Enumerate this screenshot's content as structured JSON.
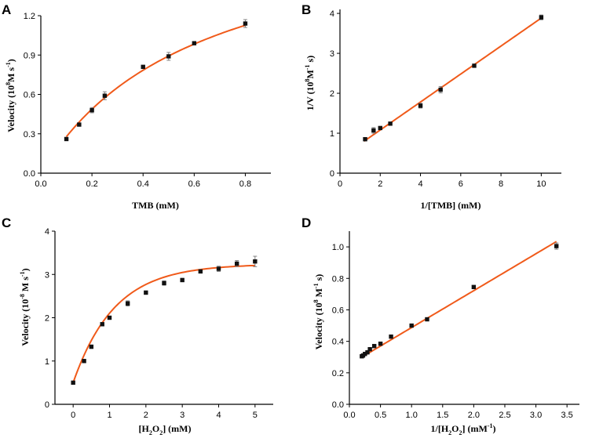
{
  "figure": {
    "panels": [
      "A",
      "B",
      "C",
      "D"
    ],
    "colors": {
      "fit": "#f05a1a",
      "marker": "#111111",
      "axis": "#000000",
      "errorbar": "#777777"
    }
  },
  "chart_data": [
    {
      "id": "A",
      "type": "scatter",
      "fit": "michaelis-menten",
      "fit_params": {
        "vmax": 2.0,
        "km": 0.62
      },
      "fit_range": [
        0.1,
        0.8
      ],
      "x": [
        0.1,
        0.15,
        0.2,
        0.25,
        0.4,
        0.5,
        0.6,
        0.8
      ],
      "y": [
        0.26,
        0.37,
        0.48,
        0.59,
        0.81,
        0.89,
        0.99,
        1.14
      ],
      "err": [
        0.01,
        0.01,
        0.02,
        0.03,
        0.01,
        0.03,
        0.01,
        0.03
      ],
      "xlim": [
        0.0,
        0.9
      ],
      "ylim": [
        0.0,
        1.2
      ],
      "xticks": [
        0.0,
        0.2,
        0.4,
        0.6,
        0.8
      ],
      "yticks": [
        0.0,
        0.3,
        0.6,
        0.9,
        1.2
      ],
      "xtick_labels": [
        "0.0",
        "0.2",
        "0.4",
        "0.6",
        "0.8"
      ],
      "ytick_labels": [
        "0.0",
        "0.3",
        "0.6",
        "0.9",
        "1.2"
      ],
      "xlabel": "TMB (mM)",
      "ylabel_parts": [
        "Velocity (10",
        "8",
        "M s",
        "-1",
        ")"
      ]
    },
    {
      "id": "B",
      "type": "scatter",
      "fit": "linear",
      "fit_params": {
        "slope": 0.3503,
        "intercept": 0.38
      },
      "fit_range": [
        1.2,
        10
      ],
      "x": [
        1.25,
        1.67,
        2.0,
        2.5,
        4.0,
        5.0,
        6.67,
        10.0
      ],
      "y": [
        0.85,
        1.07,
        1.13,
        1.24,
        1.69,
        2.09,
        2.69,
        3.9
      ],
      "err": [
        0.04,
        0.07,
        0.03,
        0.03,
        0.06,
        0.08,
        0.03,
        0.06
      ],
      "xlim": [
        0,
        11
      ],
      "ylim": [
        0,
        4.1
      ],
      "xticks": [
        0,
        2,
        4,
        6,
        8,
        10
      ],
      "yticks": [
        0,
        1,
        2,
        3,
        4
      ],
      "xtick_labels": [
        "0",
        "2",
        "4",
        "6",
        "8",
        "10"
      ],
      "ytick_labels": [
        "0",
        "1",
        "2",
        "3",
        "4"
      ],
      "xlabel": "1/[TMB] (mM)",
      "ylabel_parts": [
        "1/V (10",
        "8",
        "M",
        "-1",
        " s)"
      ]
    },
    {
      "id": "C",
      "type": "scatter",
      "fit": "exp-rise",
      "fit_params": {
        "y0": 0.5,
        "amp": 2.74,
        "k": 0.88
      },
      "fit_range": [
        0,
        5
      ],
      "x": [
        0,
        0.3,
        0.5,
        0.8,
        1.0,
        1.5,
        2.0,
        2.5,
        3.0,
        3.5,
        4.0,
        4.5,
        5.0
      ],
      "y": [
        0.5,
        1.0,
        1.33,
        1.85,
        2.0,
        2.33,
        2.58,
        2.8,
        2.87,
        3.07,
        3.13,
        3.25,
        3.3
      ],
      "err": [
        0.03,
        0.03,
        0.04,
        0.04,
        0.03,
        0.06,
        0.04,
        0.05,
        0.04,
        0.04,
        0.06,
        0.07,
        0.12
      ],
      "xlim": [
        -0.5,
        5.5
      ],
      "ylim": [
        0,
        4
      ],
      "xticks": [
        0,
        1,
        2,
        3,
        4,
        5
      ],
      "yticks": [
        0,
        1,
        2,
        3,
        4
      ],
      "xtick_labels": [
        "0",
        "1",
        "2",
        "3",
        "4",
        "5"
      ],
      "ytick_labels": [
        "0",
        "1",
        "2",
        "3",
        "4"
      ],
      "xlabel_parts": [
        "[H",
        "2",
        "O",
        "2",
        "] (mM)"
      ],
      "ylabel_parts": [
        "Velocity (10",
        "-8",
        " M s",
        "-1",
        ")"
      ]
    },
    {
      "id": "D",
      "type": "scatter",
      "fit": "linear",
      "fit_params": {
        "slope": 0.2345,
        "intercept": 0.253
      },
      "fit_range": [
        0.2,
        3.33
      ],
      "x": [
        0.2,
        0.22,
        0.25,
        0.29,
        0.33,
        0.4,
        0.5,
        0.67,
        1.0,
        1.25,
        2.0,
        3.33
      ],
      "y": [
        0.305,
        0.31,
        0.32,
        0.33,
        0.35,
        0.37,
        0.385,
        0.43,
        0.5,
        0.54,
        0.745,
        1.005
      ],
      "err": [
        0.005,
        0.005,
        0.005,
        0.006,
        0.005,
        0.006,
        0.006,
        0.008,
        0.008,
        0.01,
        0.01,
        0.02
      ],
      "xlim": [
        0,
        3.7
      ],
      "ylim": [
        0,
        1.1
      ],
      "xticks": [
        0.0,
        0.5,
        1.0,
        1.5,
        2.0,
        2.5,
        3.0,
        3.5
      ],
      "yticks": [
        0.0,
        0.2,
        0.4,
        0.6,
        0.8,
        1.0
      ],
      "xtick_labels": [
        "0.0",
        "0.5",
        "1.0",
        "1.5",
        "2.0",
        "2.5",
        "3.0",
        "3.5"
      ],
      "ytick_labels": [
        "0.0",
        "0.2",
        "0.4",
        "0.6",
        "0.8",
        "1.0"
      ],
      "xlabel_parts": [
        "1/[H",
        "2",
        "O",
        "2",
        "] (mM",
        "-1",
        ")"
      ],
      "ylabel_parts": [
        "Velocity (10",
        "8",
        " M",
        "-1",
        " s)"
      ]
    }
  ]
}
